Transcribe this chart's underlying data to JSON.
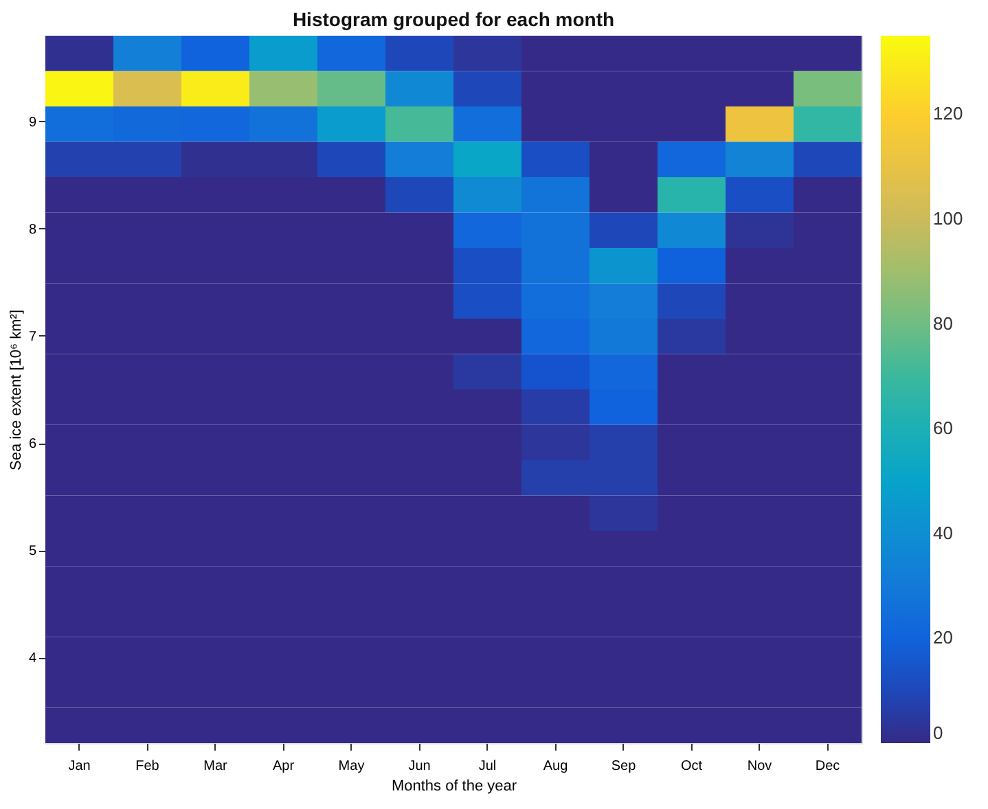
{
  "chart_data": {
    "type": "heatmap",
    "title": "Histogram grouped for each month",
    "xlabel": "Months of the year",
    "ylabel": "Sea ice extent [10⁶ km²]",
    "categories": [
      "Jan",
      "Feb",
      "Mar",
      "Apr",
      "May",
      "Jun",
      "Jul",
      "Aug",
      "Sep",
      "Oct",
      "Nov",
      "Dec"
    ],
    "ylim": [
      3.2,
      9.8
    ],
    "yticks": [
      4,
      5,
      6,
      7,
      8,
      9
    ],
    "clim": [
      0,
      135
    ],
    "cticks": [
      0,
      20,
      40,
      60,
      80,
      100,
      120
    ],
    "grid": false,
    "cells": [
      [
        2,
        33,
        20,
        47,
        22,
        10,
        4,
        0,
        0,
        0,
        0,
        0
      ],
      [
        133,
        105,
        130,
        88,
        78,
        37,
        10,
        0,
        0,
        0,
        0,
        82
      ],
      [
        25,
        23,
        22,
        27,
        47,
        72,
        25,
        0,
        0,
        0,
        112,
        68
      ],
      [
        8,
        8,
        2,
        2,
        10,
        32,
        52,
        12,
        0,
        22,
        35,
        10
      ],
      [
        0,
        0,
        0,
        0,
        0,
        10,
        38,
        28,
        0,
        65,
        12,
        0
      ],
      [
        0,
        0,
        0,
        0,
        0,
        0,
        22,
        27,
        10,
        37,
        3,
        0
      ],
      [
        0,
        0,
        0,
        0,
        0,
        0,
        12,
        27,
        43,
        19,
        0,
        0
      ],
      [
        0,
        0,
        0,
        0,
        0,
        0,
        12,
        25,
        32,
        10,
        0,
        0
      ],
      [
        0,
        0,
        0,
        0,
        0,
        0,
        0,
        22,
        30,
        5,
        0,
        0
      ],
      [
        0,
        0,
        0,
        0,
        0,
        0,
        5,
        14,
        22,
        0,
        0,
        0
      ],
      [
        0,
        0,
        0,
        0,
        0,
        0,
        0,
        6,
        20,
        0,
        0,
        0
      ],
      [
        0,
        0,
        0,
        0,
        0,
        0,
        0,
        4,
        7,
        0,
        0,
        0
      ],
      [
        0,
        0,
        0,
        0,
        0,
        0,
        0,
        7,
        7,
        0,
        0,
        0
      ],
      [
        0,
        0,
        0,
        0,
        0,
        0,
        0,
        0,
        4,
        0,
        0,
        0
      ],
      [
        0,
        0,
        0,
        0,
        0,
        0,
        0,
        0,
        0,
        0,
        0,
        0
      ],
      [
        0,
        0,
        0,
        0,
        0,
        0,
        0,
        0,
        0,
        0,
        0,
        0
      ],
      [
        0,
        0,
        0,
        0,
        0,
        0,
        0,
        0,
        0,
        0,
        0,
        0
      ],
      [
        0,
        0,
        0,
        0,
        0,
        0,
        0,
        0,
        0,
        0,
        0,
        0
      ],
      [
        0,
        0,
        0,
        0,
        0,
        0,
        0,
        0,
        0,
        0,
        0,
        0
      ],
      [
        0,
        0,
        0,
        0,
        0,
        0,
        0,
        0,
        0,
        0,
        0,
        0
      ]
    ]
  }
}
